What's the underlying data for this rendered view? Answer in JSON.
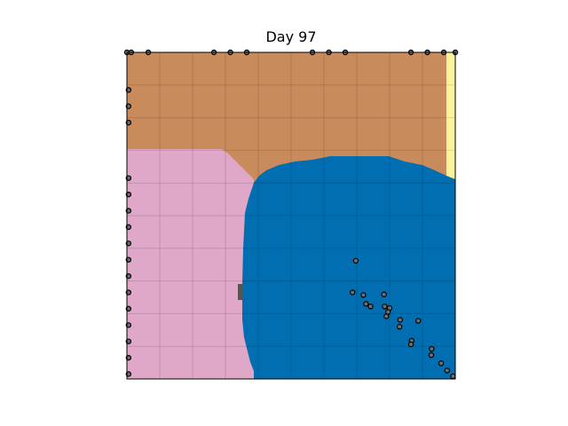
{
  "title": "Day 97",
  "colors": {
    "orange": "#c98b5b",
    "pink": "#dfa7c8",
    "blue": "#006eb0",
    "yellow": "#fdf39a",
    "gray": "#555555",
    "grid": "#000000",
    "marker_fill": "#6f6f6f",
    "marker_edge": "#000000"
  },
  "grid": {
    "divisions": 10
  },
  "chart_data": {
    "type": "scatter",
    "xlim": [
      0,
      1
    ],
    "ylim": [
      0,
      1
    ],
    "regions": [
      {
        "name": "orange",
        "color": "orange"
      },
      {
        "name": "pink",
        "color": "pink"
      },
      {
        "name": "blue",
        "color": "blue"
      },
      {
        "name": "yellow",
        "color": "yellow"
      }
    ],
    "points": [
      [
        0.0,
        1.0
      ],
      [
        0.013,
        1.0
      ],
      [
        0.065,
        1.0
      ],
      [
        0.265,
        1.0
      ],
      [
        0.315,
        1.0
      ],
      [
        0.365,
        1.0
      ],
      [
        0.565,
        1.0
      ],
      [
        0.615,
        1.0
      ],
      [
        0.665,
        1.0
      ],
      [
        0.865,
        1.0
      ],
      [
        0.915,
        1.0
      ],
      [
        0.965,
        1.0
      ],
      [
        1.0,
        1.0
      ],
      [
        0.005,
        0.885
      ],
      [
        0.005,
        0.835
      ],
      [
        0.005,
        0.785
      ],
      [
        0.005,
        0.615
      ],
      [
        0.005,
        0.565
      ],
      [
        0.005,
        0.515
      ],
      [
        0.005,
        0.465
      ],
      [
        0.005,
        0.415
      ],
      [
        0.005,
        0.365
      ],
      [
        0.005,
        0.315
      ],
      [
        0.005,
        0.265
      ],
      [
        0.005,
        0.215
      ],
      [
        0.005,
        0.165
      ],
      [
        0.005,
        0.115
      ],
      [
        0.005,
        0.065
      ],
      [
        0.005,
        0.015
      ],
      [
        0.697,
        0.362
      ],
      [
        0.687,
        0.265
      ],
      [
        0.72,
        0.257
      ],
      [
        0.783,
        0.259
      ],
      [
        0.728,
        0.23
      ],
      [
        0.742,
        0.222
      ],
      [
        0.785,
        0.222
      ],
      [
        0.8,
        0.217
      ],
      [
        0.795,
        0.205
      ],
      [
        0.79,
        0.192
      ],
      [
        0.832,
        0.181
      ],
      [
        0.83,
        0.16
      ],
      [
        0.887,
        0.178
      ],
      [
        0.867,
        0.117
      ],
      [
        0.865,
        0.106
      ],
      [
        0.928,
        0.092
      ],
      [
        0.927,
        0.073
      ],
      [
        0.957,
        0.048
      ],
      [
        0.975,
        0.026
      ],
      [
        0.993,
        0.008
      ]
    ]
  }
}
